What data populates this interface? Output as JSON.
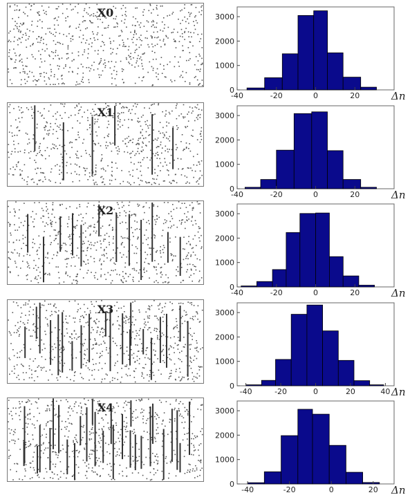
{
  "chart_data": [
    {
      "type": "bar",
      "title": "X0",
      "xlabel": "Δn",
      "xlim": [
        -40,
        40
      ],
      "ylim": [
        0,
        3400
      ],
      "xticks": [
        "-40",
        "-20",
        "0",
        "20"
      ],
      "yticks": [
        "0",
        "1000",
        "2000",
        "3000"
      ],
      "pattern": {
        "line_count": 0
      },
      "bins": [
        {
          "x0": -35,
          "x1": -26,
          "value": 80
        },
        {
          "x0": -26,
          "x1": -17,
          "value": 500
        },
        {
          "x0": -17,
          "x1": -9,
          "value": 1480
        },
        {
          "x0": -9,
          "x1": -1,
          "value": 3050
        },
        {
          "x0": -1,
          "x1": 6,
          "value": 3240
        },
        {
          "x0": 6,
          "x1": 14,
          "value": 1520
        },
        {
          "x0": 14,
          "x1": 23,
          "value": 520
        },
        {
          "x0": 23,
          "x1": 31,
          "value": 110
        }
      ],
      "color": "#0a0a8c"
    },
    {
      "type": "bar",
      "title": "X1",
      "xlabel": "Δn",
      "xlim": [
        -40,
        40
      ],
      "ylim": [
        0,
        3400
      ],
      "xticks": [
        "-40",
        "-20",
        "0",
        "20"
      ],
      "yticks": [
        "0",
        "1000",
        "2000",
        "3000"
      ],
      "pattern": {
        "line_count": 6
      },
      "bins": [
        {
          "x0": -36,
          "x1": -28,
          "value": 60
        },
        {
          "x0": -28,
          "x1": -20,
          "value": 380
        },
        {
          "x0": -20,
          "x1": -11,
          "value": 1580
        },
        {
          "x0": -11,
          "x1": -2,
          "value": 3080
        },
        {
          "x0": -2,
          "x1": 6,
          "value": 3150
        },
        {
          "x0": 6,
          "x1": 14,
          "value": 1560
        },
        {
          "x0": 14,
          "x1": 23,
          "value": 380
        },
        {
          "x0": 23,
          "x1": 31,
          "value": 60
        }
      ],
      "color": "#0a0a8c"
    },
    {
      "type": "bar",
      "title": "X2",
      "xlabel": "Δn",
      "xlim": [
        -40,
        40
      ],
      "ylim": [
        0,
        3400
      ],
      "xticks": [
        "-40",
        "-20",
        "0",
        "20"
      ],
      "yticks": [
        "0",
        "1000",
        "2000",
        "3000"
      ],
      "pattern": {
        "line_count": 12
      },
      "bins": [
        {
          "x0": -38,
          "x1": -30,
          "value": 40
        },
        {
          "x0": -30,
          "x1": -22,
          "value": 220
        },
        {
          "x0": -22,
          "x1": -15,
          "value": 710
        },
        {
          "x0": -15,
          "x1": -8,
          "value": 2230
        },
        {
          "x0": -8,
          "x1": 0,
          "value": 3010
        },
        {
          "x0": 0,
          "x1": 7,
          "value": 3030
        },
        {
          "x0": 7,
          "x1": 14,
          "value": 1240
        },
        {
          "x0": 14,
          "x1": 22,
          "value": 450
        },
        {
          "x0": 22,
          "x1": 30,
          "value": 70
        }
      ],
      "color": "#0a0a8c"
    },
    {
      "type": "bar",
      "title": "X3",
      "xlabel": "Δn",
      "xlim": [
        -45,
        45
      ],
      "ylim": [
        0,
        3400
      ],
      "xticks": [
        "-40",
        "-20",
        "0",
        "20",
        "40"
      ],
      "yticks": [
        "0",
        "1000",
        "2000",
        "3000"
      ],
      "pattern": {
        "line_count": 20
      },
      "bins": [
        {
          "x0": -40,
          "x1": -31,
          "value": 40
        },
        {
          "x0": -31,
          "x1": -23,
          "value": 220
        },
        {
          "x0": -23,
          "x1": -14,
          "value": 1080
        },
        {
          "x0": -14,
          "x1": -5,
          "value": 2930
        },
        {
          "x0": -5,
          "x1": 4,
          "value": 3310
        },
        {
          "x0": 4,
          "x1": 13,
          "value": 2250
        },
        {
          "x0": 13,
          "x1": 22,
          "value": 1040
        },
        {
          "x0": 22,
          "x1": 31,
          "value": 210
        },
        {
          "x0": 31,
          "x1": 39,
          "value": 40
        }
      ],
      "color": "#0a0a8c"
    },
    {
      "type": "bar",
      "title": "X4",
      "xlabel": "Δn",
      "xlim": [
        -45,
        30
      ],
      "ylim": [
        0,
        3400
      ],
      "xticks": [
        "-40",
        "-20",
        "0",
        "20"
      ],
      "yticks": [
        "0",
        "1000",
        "2000",
        "3000"
      ],
      "pattern": {
        "line_count": 28
      },
      "bins": [
        {
          "x0": -40,
          "x1": -32,
          "value": 50
        },
        {
          "x0": -32,
          "x1": -24,
          "value": 500
        },
        {
          "x0": -24,
          "x1": -16,
          "value": 1980
        },
        {
          "x0": -16,
          "x1": -9,
          "value": 3060
        },
        {
          "x0": -9,
          "x1": -1,
          "value": 2860
        },
        {
          "x0": -1,
          "x1": 7,
          "value": 1580
        },
        {
          "x0": 7,
          "x1": 15,
          "value": 480
        },
        {
          "x0": 15,
          "x1": 23,
          "value": 60
        }
      ],
      "color": "#0a0a8c"
    }
  ]
}
